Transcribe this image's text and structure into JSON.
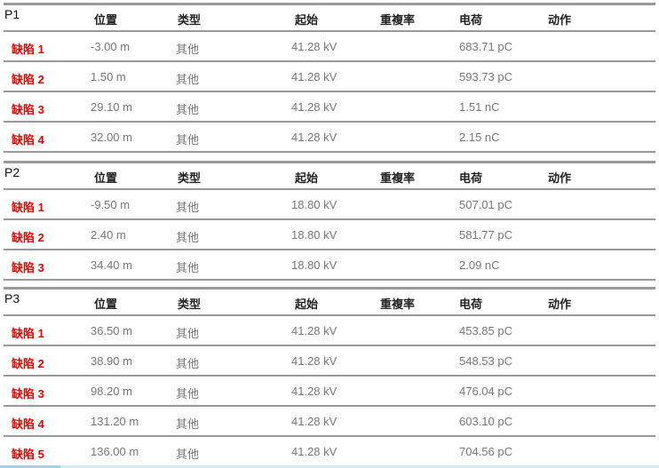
{
  "headers": {
    "position": "位置",
    "type": "类型",
    "start": "起始",
    "repeat": "重複率",
    "charge": "电荷",
    "action": "动作"
  },
  "sections": [
    {
      "name": "P1",
      "rows": [
        {
          "label": "缺陷 1",
          "position": "-3.00 m",
          "type": "其他",
          "start": "41.28 kV",
          "repeat": "",
          "charge": "683.71 pC"
        },
        {
          "label": "缺陷 2",
          "position": "1.50 m",
          "type": "其他",
          "start": "41.28 kV",
          "repeat": "",
          "charge": "593.73 pC"
        },
        {
          "label": "缺陷 3",
          "position": "29.10 m",
          "type": "其他",
          "start": "41.28 kV",
          "repeat": "",
          "charge": "1.51 nC"
        },
        {
          "label": "缺陷 4",
          "position": "32.00 m",
          "type": "其他",
          "start": "41.28 kV",
          "repeat": "",
          "charge": "2.15 nC"
        }
      ]
    },
    {
      "name": "P2",
      "rows": [
        {
          "label": "缺陷 1",
          "position": "-9.50 m",
          "type": "其他",
          "start": "18.80 kV",
          "repeat": "",
          "charge": "507.01 pC"
        },
        {
          "label": "缺陷 2",
          "position": "2.40 m",
          "type": "其他",
          "start": "18.80 kV",
          "repeat": "",
          "charge": "581.77 pC"
        },
        {
          "label": "缺陷 3",
          "position": "34.40 m",
          "type": "其他",
          "start": "18.80 kV",
          "repeat": "",
          "charge": "2.09 nC"
        }
      ]
    },
    {
      "name": "P3",
      "rows": [
        {
          "label": "缺陷 1",
          "position": "36.50 m",
          "type": "其他",
          "start": "41.28 kV",
          "repeat": "",
          "charge": "453.85 pC"
        },
        {
          "label": "缺陷 2",
          "position": "38.90 m",
          "type": "其他",
          "start": "41.28 kV",
          "repeat": "",
          "charge": "548.53 pC"
        },
        {
          "label": "缺陷 3",
          "position": "98.20 m",
          "type": "其他",
          "start": "41.28 kV",
          "repeat": "",
          "charge": "476.04 pC"
        },
        {
          "label": "缺陷 4",
          "position": "131.20 m",
          "type": "其他",
          "start": "41.28 kV",
          "repeat": "",
          "charge": "603.10 pC"
        },
        {
          "label": "缺陷 5",
          "position": "136.00 m",
          "type": "其他",
          "start": "41.28 kV",
          "repeat": "",
          "charge": "704.56 pC"
        }
      ]
    }
  ]
}
